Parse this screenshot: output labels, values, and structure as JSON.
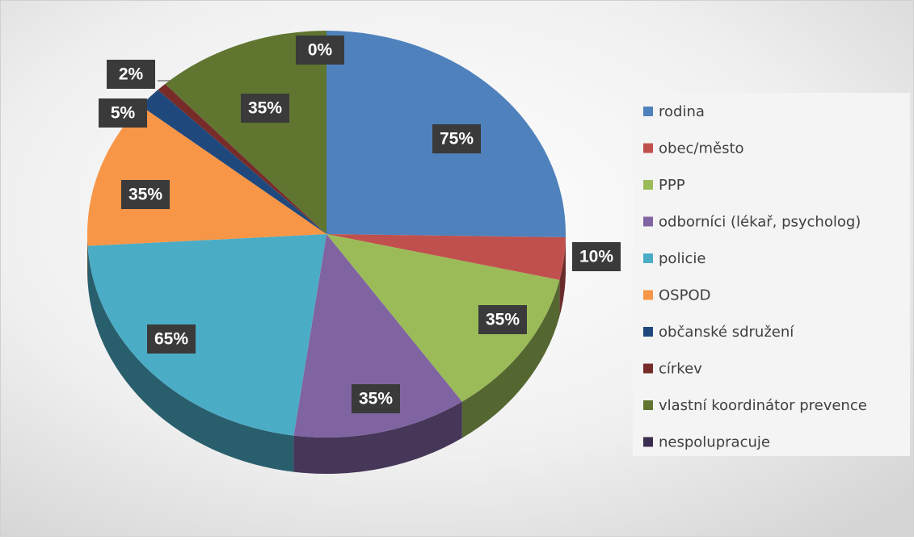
{
  "chart_data": {
    "type": "pie",
    "categories": [
      "rodina",
      "obec/město",
      "PPP",
      "odborníci (lékař, psycholog)",
      "policie",
      "OSPOD",
      "občanské sdružení",
      "církev",
      "vlastní koordinátor prevence",
      "nespolupracuje"
    ],
    "values": [
      75,
      10,
      35,
      35,
      65,
      35,
      5,
      2,
      35,
      0
    ],
    "value_labels": [
      "75%",
      "10%",
      "35%",
      "35%",
      "65%",
      "35%",
      "5%",
      "2%",
      "35%",
      "0%"
    ],
    "colors": [
      "#4f81bd",
      "#c0504d",
      "#9bbb59",
      "#8064a2",
      "#4bacc6",
      "#f79646",
      "#1f497d",
      "#772c2a",
      "#5f7530",
      "#3b2d4f"
    ],
    "legend": "right"
  }
}
